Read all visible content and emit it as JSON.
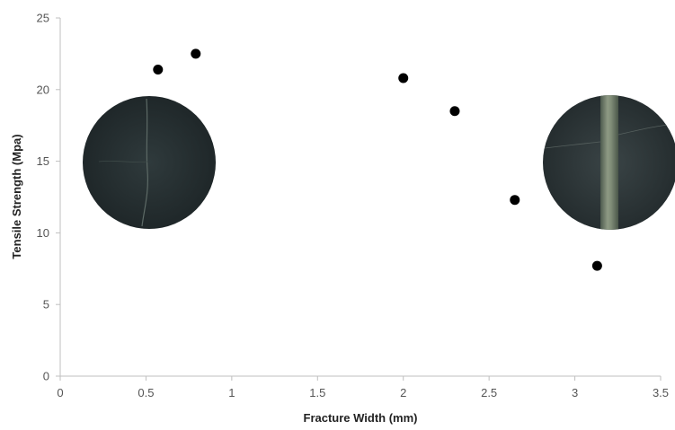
{
  "chart_data": {
    "type": "scatter",
    "xlabel": "Fracture Width (mm)",
    "ylabel": "Tensile Strength (Mpa)",
    "xlim": [
      0,
      3.5
    ],
    "ylim": [
      0,
      25
    ],
    "x_ticks": [
      "0",
      "0.5",
      "1",
      "1.5",
      "2",
      "2.5",
      "3",
      "3.5"
    ],
    "y_ticks": [
      "0",
      "5",
      "10",
      "15",
      "20",
      "25"
    ],
    "grid": false,
    "legend": "none",
    "marker_color": "#000000",
    "series": [
      {
        "points": [
          {
            "x": 0.57,
            "y": 21.4
          },
          {
            "x": 0.79,
            "y": 22.5
          },
          {
            "x": 2.0,
            "y": 20.8
          },
          {
            "x": 2.3,
            "y": 18.5
          },
          {
            "x": 2.65,
            "y": 12.3
          },
          {
            "x": 3.13,
            "y": 7.7
          }
        ]
      }
    ],
    "images": [
      {
        "name": "specimen-photo-narrow-fracture",
        "description_icon": "rock-disc-thin-crack"
      },
      {
        "name": "specimen-photo-wide-fracture",
        "description_icon": "rock-disc-wide-crack"
      }
    ]
  }
}
